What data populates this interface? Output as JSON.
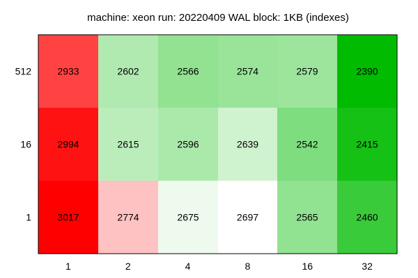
{
  "chart_data": {
    "type": "heatmap",
    "title": "machine: xeon run: 20220409 WAL block: 1KB (indexes)",
    "xlabel": "",
    "ylabel": "",
    "x_categories": [
      "1",
      "2",
      "4",
      "8",
      "16",
      "32"
    ],
    "y_categories": [
      "512",
      "16",
      "1"
    ],
    "values": [
      [
        2933,
        2602,
        2566,
        2574,
        2579,
        2390
      ],
      [
        2994,
        2615,
        2596,
        2639,
        2542,
        2415
      ],
      [
        3017,
        2774,
        2675,
        2697,
        2565,
        2460
      ]
    ],
    "colors": {
      "high": "#ff0000",
      "mid": "#ffffff",
      "low": "#00bb00"
    },
    "grid": false,
    "legend": "none"
  }
}
